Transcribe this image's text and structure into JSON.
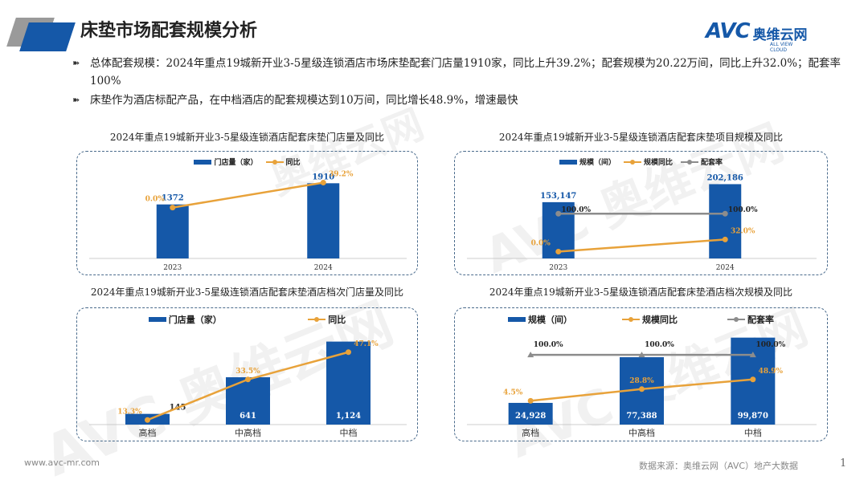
{
  "header": {
    "title": "床垫市场配套规模分析",
    "logo_avc": "AVC",
    "logo_cn": "奥维云网",
    "logo_en": "ALL VIEW CLOUD"
  },
  "watermark": "AVC 奥维云网",
  "bullets": [
    {
      "icon": "double-arrow-icon",
      "glyph": "➽",
      "text": "总体配套规模：2024年重点19城新开业3-5星级连锁酒店市场床垫配套门店量1910家，同比上升39.2%；配套规模为20.22万间，同比上升32.0%；配套率100%"
    },
    {
      "icon": "double-arrow-icon",
      "glyph": "➽",
      "text": "床垫作为酒店标配产品，在中档酒店的配套规模达到10万间，同比增长48.9%，增速最快"
    }
  ],
  "colors": {
    "bar": "#1558a8",
    "yoy": "#e8a23a",
    "rate": "#8c8c8c"
  },
  "chart_data": [
    {
      "type": "bar+line",
      "title": "2024年重点19城新开业3-5星级连锁酒店配套床垫门店量及同比",
      "categories": [
        "2023",
        "2024"
      ],
      "bars": {
        "name": "门店量（家）",
        "values": [
          1372,
          1910
        ],
        "labels": [
          "1372",
          "1910"
        ],
        "ylim": [
          0,
          2100
        ]
      },
      "lines": [
        {
          "name": "同比",
          "key": "yoy",
          "values": [
            0,
            39.2
          ],
          "labels": [
            "0.0%",
            "39.2%"
          ],
          "ylim": [
            -80,
            50
          ]
        }
      ]
    },
    {
      "type": "bar+line",
      "title": "2024年重点19城新开业3-5星级连锁酒店配套床垫项目规模及同比",
      "categories": [
        "2023",
        "2024"
      ],
      "bars": {
        "name": "规模（间）",
        "values": [
          153147,
          202186
        ],
        "labels": [
          "153,147",
          "202,186"
        ],
        "ylim": [
          0,
          225000
        ]
      },
      "lines": [
        {
          "name": "规模同比",
          "key": "yoy",
          "values": [
            0,
            32.0
          ],
          "labels": [
            "0.0%",
            "32.0%"
          ],
          "ylim": [
            -18,
            200
          ]
        },
        {
          "name": "配套率",
          "key": "rate",
          "values": [
            100,
            100
          ],
          "labels": [
            "100.0%",
            "100.0%"
          ],
          "ylim": [
            -18,
            200
          ]
        }
      ]
    },
    {
      "type": "bar+line",
      "title": "2024年重点19城新开业3-5星级连锁酒店配套床垫酒店档次门店量及同比",
      "categories": [
        "高档",
        "中高档",
        "中档"
      ],
      "bars": {
        "name": "门店量（家）",
        "values": [
          145,
          641,
          1124
        ],
        "labels": [
          "145",
          "641",
          "1,124"
        ],
        "ylim": [
          0,
          1250
        ]
      },
      "lines": [
        {
          "name": "同比",
          "key": "yoy",
          "values": [
            13.3,
            33.5,
            47.1
          ],
          "labels": [
            "13.3%",
            "33.5%",
            "47.1%"
          ],
          "ylim": [
            11,
            57
          ]
        }
      ]
    },
    {
      "type": "bar+line",
      "title": "2024年重点19城新开业3-5星级连锁酒店配套床垫酒店档次规模及同比",
      "categories": [
        "高档",
        "中高档",
        "中档"
      ],
      "bars": {
        "name": "规模（间）",
        "values": [
          24928,
          77388,
          99870
        ],
        "labels": [
          "24,928",
          "77,388",
          "99,870"
        ],
        "ylim": [
          0,
          106000
        ]
      },
      "lines": [
        {
          "name": "规模同比",
          "key": "yoy",
          "values": [
            4.5,
            28.8,
            48.9
          ],
          "labels": [
            "4.5%",
            "28.8%",
            "48.9%"
          ],
          "ylim": [
            -45,
            147
          ]
        },
        {
          "name": "配套率",
          "key": "rate",
          "values": [
            100,
            100,
            100
          ],
          "labels": [
            "100.0%",
            "100.0%",
            "100.0%"
          ],
          "ylim": [
            -45,
            147
          ]
        }
      ]
    }
  ],
  "footer": {
    "url": "www.avc-mr.com",
    "source": "数据来源：奥维云网（AVC）地产大数据",
    "page": "1"
  }
}
